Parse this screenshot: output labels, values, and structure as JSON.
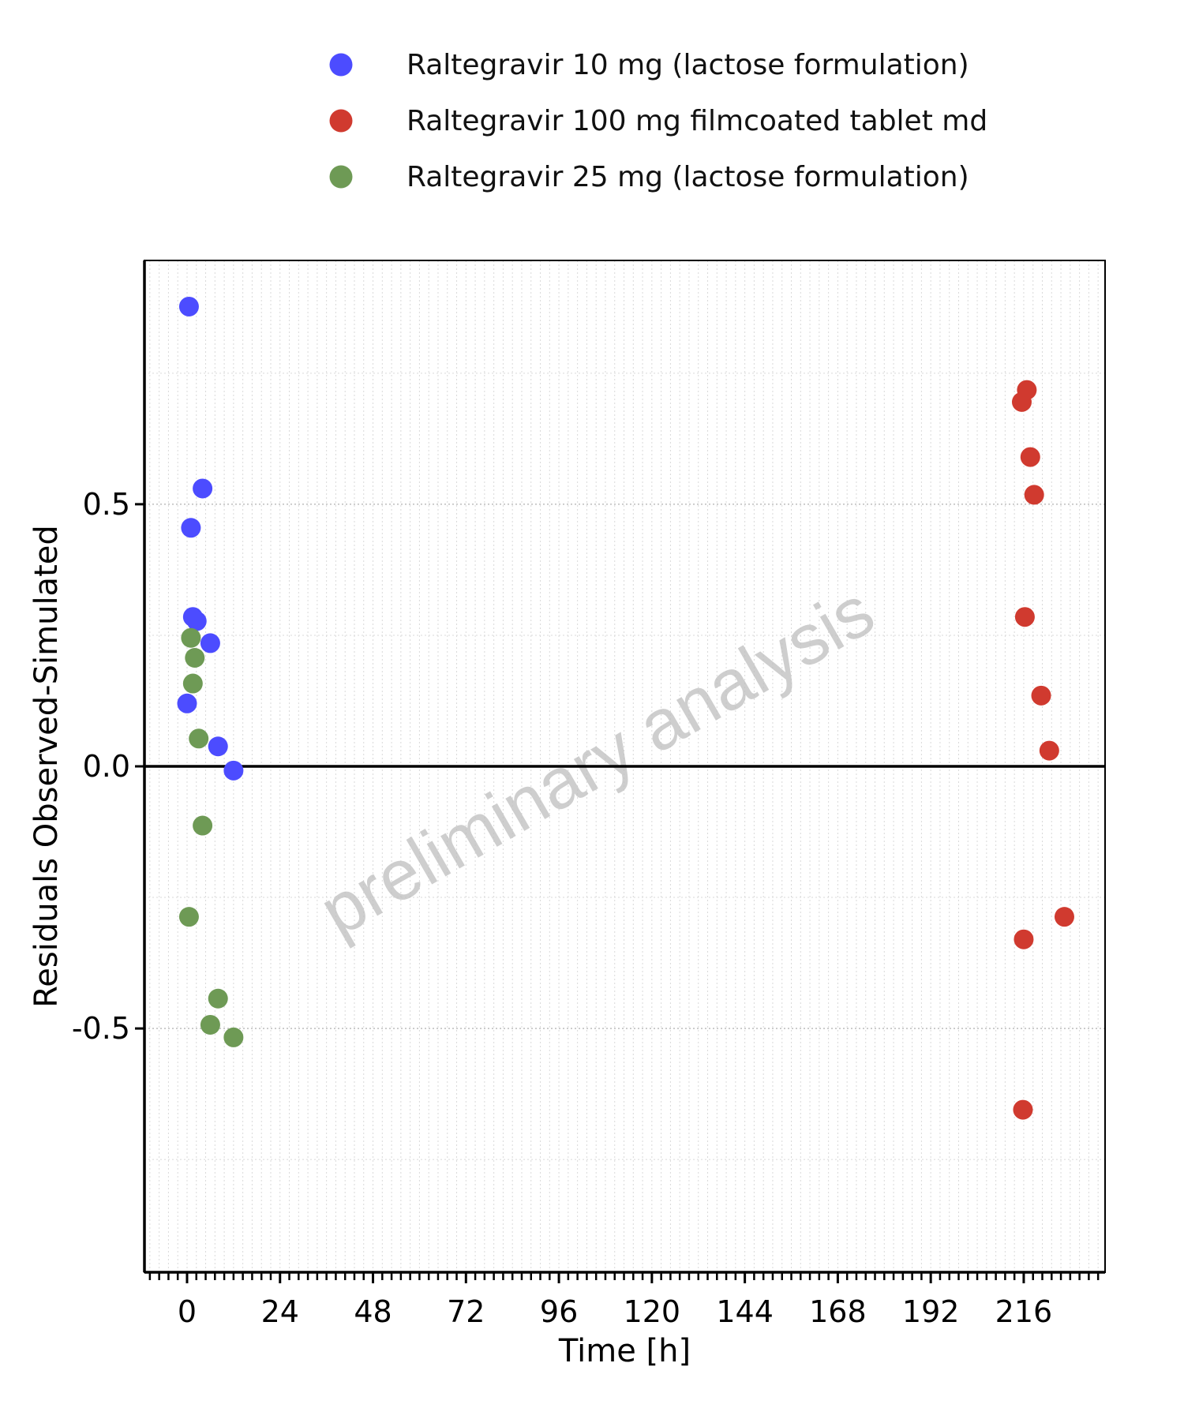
{
  "chart_data": {
    "type": "scatter",
    "title": "",
    "xlabel": "Time [h]",
    "ylabel": "Residuals Observed-Simulated",
    "xlim": [
      -11,
      237
    ],
    "ylim": [
      -0.965,
      0.965
    ],
    "x_ticks": [
      0,
      24,
      48,
      72,
      96,
      120,
      144,
      168,
      192,
      216
    ],
    "x_tick_labels": [
      "0",
      "24",
      "48",
      "72",
      "96",
      "120",
      "144",
      "168",
      "192",
      "216"
    ],
    "x_minor_step": 2.4,
    "y_ticks": [
      -0.5,
      0.0,
      0.5
    ],
    "y_tick_labels": [
      "-0.5",
      "0.0",
      "0.5"
    ],
    "y_minor_step": 0.25,
    "grid": true,
    "zero_line": true,
    "legend_position": "top",
    "watermark": "preliminary analysis",
    "series": [
      {
        "name": "Raltegravir 10 mg (lactose formulation)",
        "color": "#4c4cff",
        "points": [
          [
            0.5,
            0.877
          ],
          [
            1.0,
            0.455
          ],
          [
            1.5,
            0.285
          ],
          [
            2.5,
            0.277
          ],
          [
            4.0,
            0.53
          ],
          [
            6.0,
            0.235
          ],
          [
            8.0,
            0.038
          ],
          [
            12.0,
            -0.008
          ],
          [
            0.0,
            0.12
          ]
        ]
      },
      {
        "name": "Raltegravir 100 mg filmcoated tablet md",
        "color": "#d03a2f",
        "points": [
          [
            215.5,
            0.695
          ],
          [
            216.8,
            0.718
          ],
          [
            217.7,
            0.59
          ],
          [
            218.7,
            0.518
          ],
          [
            216.3,
            0.285
          ],
          [
            220.5,
            0.135
          ],
          [
            222.6,
            0.03
          ],
          [
            216.0,
            -0.33
          ],
          [
            226.5,
            -0.287
          ],
          [
            215.8,
            -0.655
          ]
        ]
      },
      {
        "name": "Raltegravir 25 mg (lactose formulation)",
        "color": "#6e9a55",
        "points": [
          [
            1.0,
            0.245
          ],
          [
            2.0,
            0.207
          ],
          [
            1.5,
            0.158
          ],
          [
            3.0,
            0.053
          ],
          [
            4.0,
            -0.113
          ],
          [
            0.5,
            -0.287
          ],
          [
            8.0,
            -0.443
          ],
          [
            6.0,
            -0.493
          ],
          [
            12.0,
            -0.517
          ]
        ]
      }
    ]
  }
}
